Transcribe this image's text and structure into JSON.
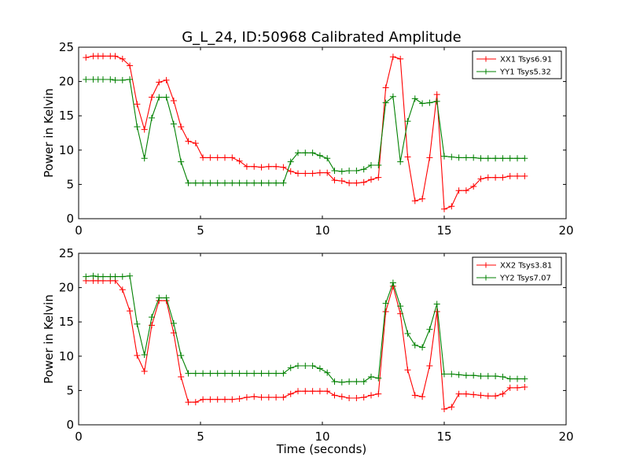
{
  "title": "G_L_24, ID:50968 Calibrated Amplitude",
  "xlabel": "Time (seconds)",
  "colors": {
    "red": "#ff0000",
    "green": "#008000"
  },
  "chart_data": [
    {
      "type": "line",
      "ylabel": "Power in Kelvin",
      "xlim": [
        0,
        20
      ],
      "ylim": [
        0,
        25
      ],
      "xticks": [
        "0",
        "5",
        "10",
        "15",
        "20"
      ],
      "yticks": [
        "0",
        "5",
        "10",
        "15",
        "20",
        "25"
      ],
      "legend_position": "top-right",
      "series": [
        {
          "name": "XX1 Tsys6.91",
          "color": "#ff0000",
          "x": [
            0.3,
            0.6,
            0.8,
            1.0,
            1.3,
            1.5,
            1.8,
            2.1,
            2.4,
            2.7,
            3.0,
            3.3,
            3.6,
            3.9,
            4.2,
            4.5,
            4.8,
            5.1,
            5.4,
            5.7,
            6.0,
            6.3,
            6.6,
            6.9,
            7.2,
            7.5,
            7.8,
            8.1,
            8.4,
            8.7,
            9.0,
            9.3,
            9.6,
            9.9,
            10.2,
            10.5,
            10.8,
            11.1,
            11.4,
            11.7,
            12.0,
            12.3,
            12.6,
            12.9,
            13.2,
            13.5,
            13.8,
            14.1,
            14.4,
            14.7,
            15.0,
            15.3,
            15.6,
            15.9,
            16.2,
            16.5,
            16.8,
            17.1,
            17.4,
            17.7,
            18.0,
            18.3
          ],
          "y": [
            23.5,
            23.7,
            23.7,
            23.7,
            23.7,
            23.7,
            23.3,
            22.3,
            16.7,
            13.0,
            17.7,
            19.9,
            20.2,
            17.2,
            13.4,
            11.3,
            11.0,
            8.9,
            8.9,
            8.9,
            8.9,
            8.9,
            8.4,
            7.6,
            7.6,
            7.5,
            7.6,
            7.6,
            7.5,
            6.9,
            6.6,
            6.6,
            6.6,
            6.7,
            6.7,
            5.6,
            5.5,
            5.2,
            5.2,
            5.3,
            5.7,
            6.0,
            19.1,
            23.6,
            23.3,
            9.0,
            2.6,
            2.9,
            8.9,
            18.1,
            1.4,
            1.8,
            4.1,
            4.1,
            4.7,
            5.8,
            6.0,
            6.0,
            6.0,
            6.2,
            6.2,
            6.2
          ]
        },
        {
          "name": "YY1 Tsys5.32",
          "color": "#008000",
          "x": [
            0.3,
            0.6,
            0.8,
            1.0,
            1.3,
            1.5,
            1.8,
            2.1,
            2.4,
            2.7,
            3.0,
            3.3,
            3.6,
            3.9,
            4.2,
            4.5,
            4.8,
            5.1,
            5.4,
            5.7,
            6.0,
            6.3,
            6.6,
            6.9,
            7.2,
            7.5,
            7.8,
            8.1,
            8.4,
            8.7,
            9.0,
            9.3,
            9.6,
            9.9,
            10.2,
            10.5,
            10.8,
            11.1,
            11.4,
            11.7,
            12.0,
            12.3,
            12.6,
            12.9,
            13.2,
            13.5,
            13.8,
            14.1,
            14.4,
            14.7,
            15.0,
            15.3,
            15.6,
            15.9,
            16.2,
            16.5,
            16.8,
            17.1,
            17.4,
            17.7,
            18.0,
            18.3
          ],
          "y": [
            20.3,
            20.3,
            20.3,
            20.3,
            20.3,
            20.2,
            20.2,
            20.3,
            13.4,
            8.8,
            14.7,
            17.7,
            17.7,
            13.8,
            8.3,
            5.2,
            5.2,
            5.2,
            5.2,
            5.2,
            5.2,
            5.2,
            5.2,
            5.2,
            5.2,
            5.2,
            5.2,
            5.2,
            5.2,
            8.3,
            9.6,
            9.6,
            9.6,
            9.2,
            8.8,
            7.0,
            6.9,
            7.0,
            7.0,
            7.2,
            7.8,
            7.8,
            16.9,
            17.8,
            8.3,
            14.2,
            17.5,
            16.8,
            16.9,
            17.1,
            9.1,
            9.0,
            8.9,
            8.9,
            8.9,
            8.8,
            8.8,
            8.8,
            8.8,
            8.8,
            8.8,
            8.8
          ]
        }
      ]
    },
    {
      "type": "line",
      "ylabel": "Power in Kelvin",
      "xlabel": "Time (seconds)",
      "xlim": [
        0,
        20
      ],
      "ylim": [
        0,
        25
      ],
      "xticks": [
        "0",
        "5",
        "10",
        "15",
        "20"
      ],
      "yticks": [
        "0",
        "5",
        "10",
        "15",
        "20",
        "25"
      ],
      "legend_position": "top-right",
      "series": [
        {
          "name": "XX2 Tsys3.81",
          "color": "#ff0000",
          "x": [
            0.3,
            0.6,
            0.8,
            1.0,
            1.3,
            1.5,
            1.8,
            2.1,
            2.4,
            2.7,
            3.0,
            3.3,
            3.6,
            3.9,
            4.2,
            4.5,
            4.8,
            5.1,
            5.4,
            5.7,
            6.0,
            6.3,
            6.6,
            6.9,
            7.2,
            7.5,
            7.8,
            8.1,
            8.4,
            8.7,
            9.0,
            9.3,
            9.6,
            9.9,
            10.2,
            10.5,
            10.8,
            11.1,
            11.4,
            11.7,
            12.0,
            12.3,
            12.6,
            12.9,
            13.2,
            13.5,
            13.8,
            14.1,
            14.4,
            14.7,
            15.0,
            15.3,
            15.6,
            15.9,
            16.2,
            16.5,
            16.8,
            17.1,
            17.4,
            17.7,
            18.0,
            18.3
          ],
          "y": [
            21.0,
            21.0,
            21.0,
            21.0,
            21.0,
            21.0,
            19.7,
            16.6,
            10.1,
            7.8,
            14.5,
            18.1,
            18.1,
            13.4,
            7.0,
            3.3,
            3.3,
            3.7,
            3.7,
            3.7,
            3.7,
            3.7,
            3.8,
            4.0,
            4.1,
            4.0,
            4.0,
            4.0,
            4.0,
            4.5,
            4.9,
            4.9,
            4.9,
            4.9,
            4.9,
            4.3,
            4.1,
            3.9,
            3.9,
            4.0,
            4.3,
            4.5,
            16.5,
            20.2,
            16.2,
            8.0,
            4.3,
            4.1,
            8.6,
            16.5,
            2.3,
            2.6,
            4.5,
            4.5,
            4.4,
            4.3,
            4.2,
            4.2,
            4.5,
            5.4,
            5.4,
            5.5
          ]
        },
        {
          "name": "YY2 Tsys7.07",
          "color": "#008000",
          "x": [
            0.3,
            0.6,
            0.8,
            1.0,
            1.3,
            1.5,
            1.8,
            2.1,
            2.4,
            2.7,
            3.0,
            3.3,
            3.6,
            3.9,
            4.2,
            4.5,
            4.8,
            5.1,
            5.4,
            5.7,
            6.0,
            6.3,
            6.6,
            6.9,
            7.2,
            7.5,
            7.8,
            8.1,
            8.4,
            8.7,
            9.0,
            9.3,
            9.6,
            9.9,
            10.2,
            10.5,
            10.8,
            11.1,
            11.4,
            11.7,
            12.0,
            12.3,
            12.6,
            12.9,
            13.2,
            13.5,
            13.8,
            14.1,
            14.4,
            14.7,
            15.0,
            15.3,
            15.6,
            15.9,
            16.2,
            16.5,
            16.8,
            17.1,
            17.4,
            17.7,
            18.0,
            18.3
          ],
          "y": [
            21.6,
            21.7,
            21.6,
            21.6,
            21.6,
            21.6,
            21.6,
            21.7,
            14.7,
            10.2,
            15.7,
            18.5,
            18.5,
            14.8,
            10.1,
            7.5,
            7.5,
            7.5,
            7.5,
            7.5,
            7.5,
            7.5,
            7.5,
            7.5,
            7.5,
            7.5,
            7.5,
            7.5,
            7.5,
            8.3,
            8.6,
            8.6,
            8.6,
            8.2,
            7.6,
            6.3,
            6.2,
            6.3,
            6.3,
            6.3,
            7.0,
            6.8,
            17.7,
            20.7,
            17.3,
            13.3,
            11.6,
            11.3,
            13.9,
            17.6,
            7.4,
            7.4,
            7.3,
            7.2,
            7.2,
            7.1,
            7.1,
            7.1,
            7.0,
            6.7,
            6.7,
            6.7
          ]
        }
      ]
    }
  ]
}
